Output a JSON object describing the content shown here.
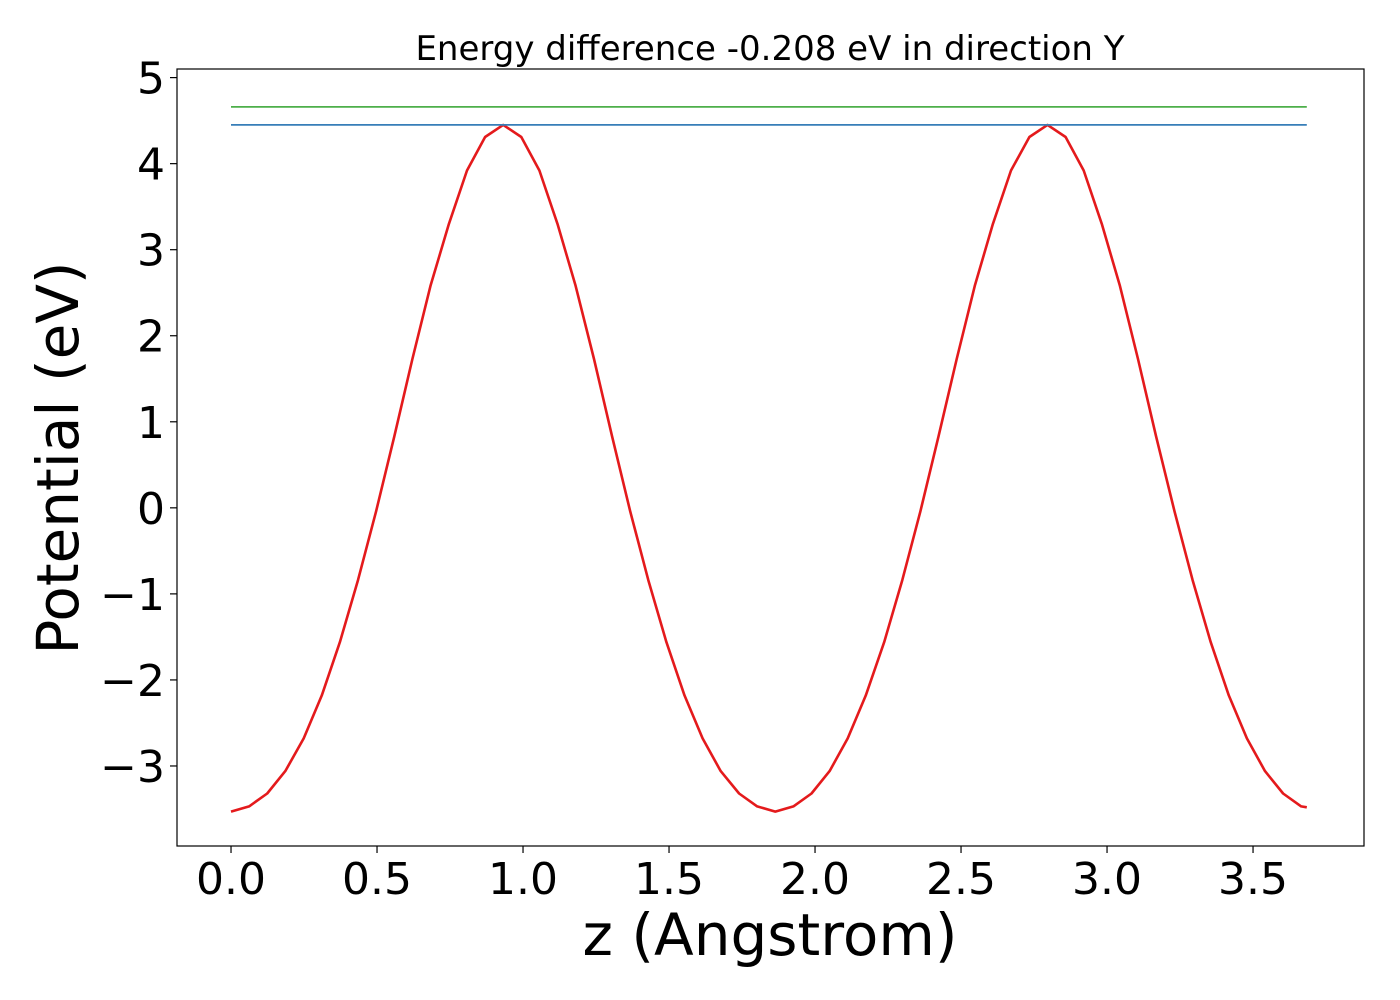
{
  "chart_data": {
    "type": "line",
    "title": "Energy difference -0.208 eV in direction Y",
    "xlabel": "z (Angstrom)",
    "ylabel": "Potential (eV)",
    "xlim": [
      -0.185,
      3.88
    ],
    "ylim": [
      -3.93,
      5.1
    ],
    "x_ticks": [
      0.0,
      0.5,
      1.0,
      1.5,
      2.0,
      2.5,
      3.0,
      3.5
    ],
    "x_tick_labels": [
      "0.0",
      "0.5",
      "1.0",
      "1.5",
      "2.0",
      "2.5",
      "3.0",
      "3.5"
    ],
    "y_ticks": [
      -3,
      -2,
      -1,
      0,
      1,
      2,
      3,
      4,
      5
    ],
    "y_tick_labels": [
      "−3",
      "−2",
      "−1",
      "0",
      "1",
      "2",
      "3",
      "4",
      "5"
    ],
    "grid": false,
    "legend": "none",
    "series": [
      {
        "color": "#e41a1c",
        "x": [
          0.0,
          0.062,
          0.124,
          0.186,
          0.249,
          0.311,
          0.373,
          0.435,
          0.497,
          0.559,
          0.621,
          0.683,
          0.746,
          0.808,
          0.87,
          0.932,
          0.994,
          1.056,
          1.118,
          1.18,
          1.243,
          1.305,
          1.367,
          1.429,
          1.491,
          1.553,
          1.615,
          1.677,
          1.74,
          1.802,
          1.864,
          1.926,
          1.988,
          2.05,
          2.112,
          2.174,
          2.237,
          2.299,
          2.361,
          2.423,
          2.485,
          2.547,
          2.609,
          2.671,
          2.734,
          2.796,
          2.858,
          2.92,
          2.982,
          3.044,
          3.106,
          3.168,
          3.231,
          3.293,
          3.355,
          3.417,
          3.479,
          3.541,
          3.603,
          3.665,
          3.684
        ],
        "y": [
          -3.53,
          -3.47,
          -3.32,
          -3.06,
          -2.68,
          -2.18,
          -1.56,
          -0.84,
          -0.04,
          0.83,
          1.73,
          2.58,
          3.3,
          3.92,
          4.31,
          4.45,
          4.31,
          3.92,
          3.3,
          2.58,
          1.73,
          0.83,
          -0.04,
          -0.84,
          -1.56,
          -2.18,
          -2.68,
          -3.06,
          -3.32,
          -3.47,
          -3.53,
          -3.47,
          -3.32,
          -3.06,
          -2.68,
          -2.18,
          -1.56,
          -0.84,
          -0.04,
          0.83,
          1.73,
          2.58,
          3.3,
          3.92,
          4.31,
          4.45,
          4.31,
          3.92,
          3.3,
          2.58,
          1.73,
          0.83,
          -0.04,
          -0.84,
          -1.56,
          -2.18,
          -2.68,
          -3.06,
          -3.32,
          -3.47,
          -3.48
        ]
      },
      {
        "color": "#4daf4a",
        "x": [
          0.0,
          3.684
        ],
        "y": [
          4.66,
          4.66
        ]
      },
      {
        "color": "#377eb8",
        "x": [
          0.0,
          3.684
        ],
        "y": [
          4.45,
          4.45
        ]
      }
    ]
  }
}
